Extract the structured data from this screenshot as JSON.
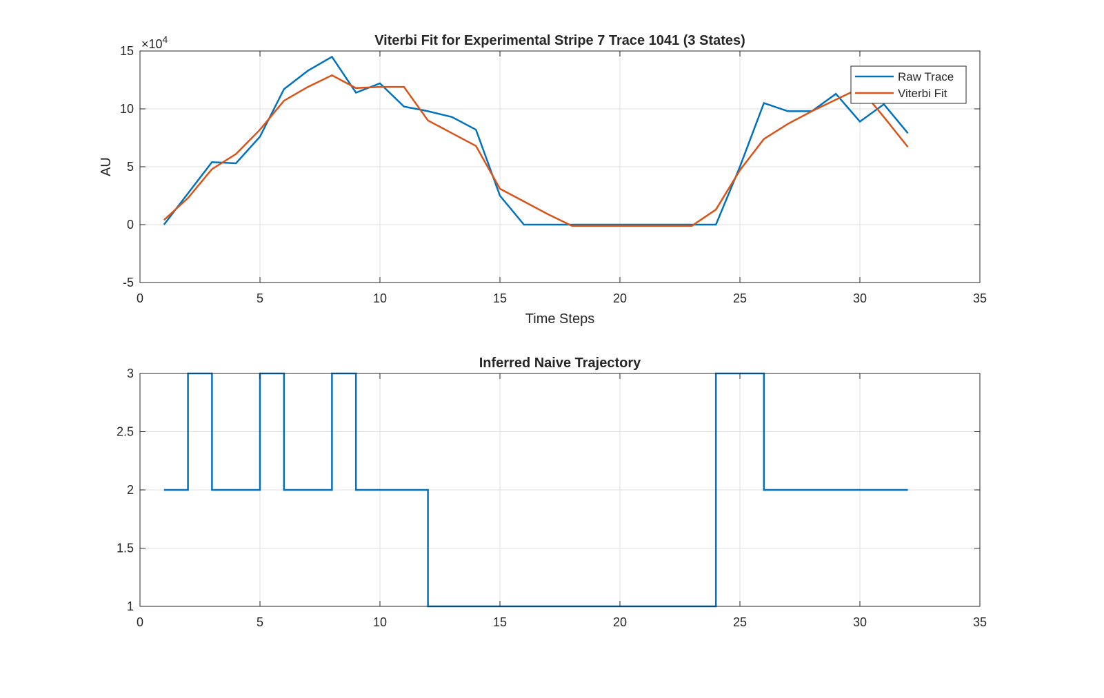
{
  "colors": {
    "raw": "#0072BD",
    "fit": "#D95319",
    "axis": "#262626",
    "grid": "#dfdfdf"
  },
  "chart_data": [
    {
      "type": "line",
      "title": "Viterbi Fit for Experimental Stripe 7 Trace 1041 (3 States)",
      "xlabel": "Time Steps",
      "ylabel": "AU",
      "xlim": [
        0,
        35
      ],
      "ylim": [
        -5,
        15
      ],
      "y_exponent_label": "×10",
      "y_exponent_power": "4",
      "xticks": [
        "0",
        "5",
        "10",
        "15",
        "20",
        "25",
        "30",
        "35"
      ],
      "yticks": [
        "-5",
        "0",
        "5",
        "10",
        "15"
      ],
      "grid": true,
      "legend_position": "top-right",
      "x": [
        1,
        2,
        3,
        4,
        5,
        6,
        7,
        8,
        9,
        10,
        11,
        12,
        13,
        14,
        15,
        16,
        17,
        18,
        19,
        20,
        21,
        22,
        23,
        24,
        25,
        26,
        27,
        28,
        29,
        30,
        31,
        32
      ],
      "series": [
        {
          "name": "Raw Trace",
          "values": [
            0,
            2.7,
            5.4,
            5.3,
            7.6,
            11.7,
            13.3,
            14.5,
            11.4,
            12.2,
            10.2,
            9.8,
            9.3,
            8.2,
            2.5,
            0,
            0,
            0,
            0,
            0,
            0,
            0,
            0,
            0,
            5.0,
            10.5,
            9.8,
            9.8,
            11.3,
            8.9,
            10.4,
            7.9
          ]
        },
        {
          "name": "Viterbi Fit",
          "values": [
            0.4,
            2.3,
            4.8,
            6.1,
            8.2,
            10.7,
            11.9,
            12.9,
            11.8,
            11.9,
            11.9,
            9.0,
            7.9,
            6.8,
            3.1,
            2.0,
            0.9,
            -0.1,
            -0.1,
            -0.1,
            -0.1,
            -0.1,
            -0.1,
            1.3,
            4.7,
            7.4,
            8.7,
            9.8,
            10.8,
            11.8,
            9.3,
            6.7
          ]
        }
      ]
    },
    {
      "type": "line",
      "title": "Inferred Naive Trajectory",
      "xlabel": "",
      "ylabel": "",
      "xlim": [
        0,
        35
      ],
      "ylim": [
        1,
        3
      ],
      "xticks": [
        "0",
        "5",
        "10",
        "15",
        "20",
        "25",
        "30",
        "35"
      ],
      "yticks": [
        "1",
        "1.5",
        "2",
        "2.5",
        "3"
      ],
      "grid": true,
      "step": true,
      "x": [
        1,
        2,
        3,
        4,
        5,
        6,
        7,
        8,
        9,
        10,
        11,
        12,
        13,
        14,
        15,
        16,
        17,
        18,
        19,
        20,
        21,
        22,
        23,
        24,
        25,
        26,
        27,
        28,
        29,
        30,
        31,
        32
      ],
      "series": [
        {
          "values": [
            2,
            3,
            2,
            2,
            3,
            2,
            2,
            3,
            2,
            2,
            2,
            1,
            1,
            1,
            1,
            1,
            1,
            1,
            1,
            1,
            1,
            1,
            1,
            3,
            3,
            2,
            2,
            2,
            2,
            2,
            2,
            2
          ]
        }
      ]
    }
  ]
}
